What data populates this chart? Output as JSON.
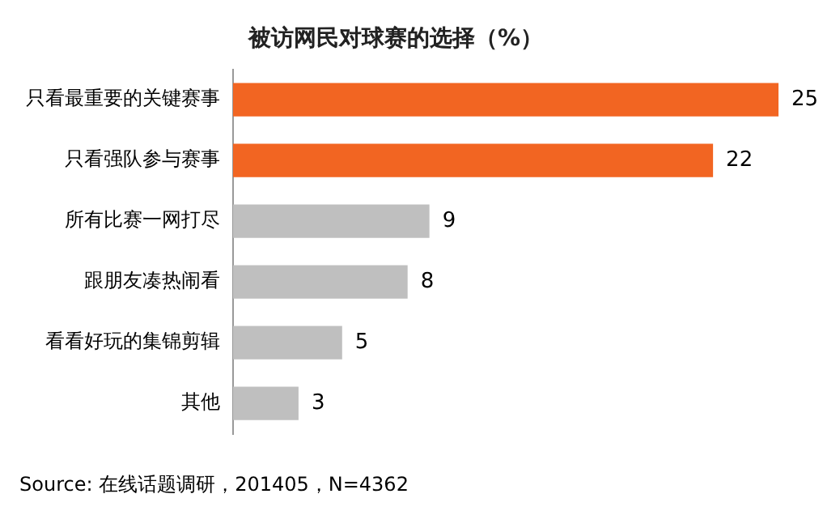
{
  "chart_data": {
    "type": "bar",
    "orientation": "horizontal",
    "title": "被访网民对球赛的选择（%）",
    "categories": [
      "只看最重要的关键赛事",
      "只看强队参与赛事",
      "所有比赛一网打尽",
      "跟朋友凑热闹看",
      "看看好玩的集锦剪辑",
      "其他"
    ],
    "values": [
      25,
      22,
      9,
      8,
      5,
      3
    ],
    "colors": [
      "#f26522",
      "#f26522",
      "#bfbfbf",
      "#bfbfbf",
      "#bfbfbf",
      "#bfbfbf"
    ],
    "data_labels": true,
    "annotations": [
      "Source: 在线话题调研，201405，N=4362"
    ]
  }
}
